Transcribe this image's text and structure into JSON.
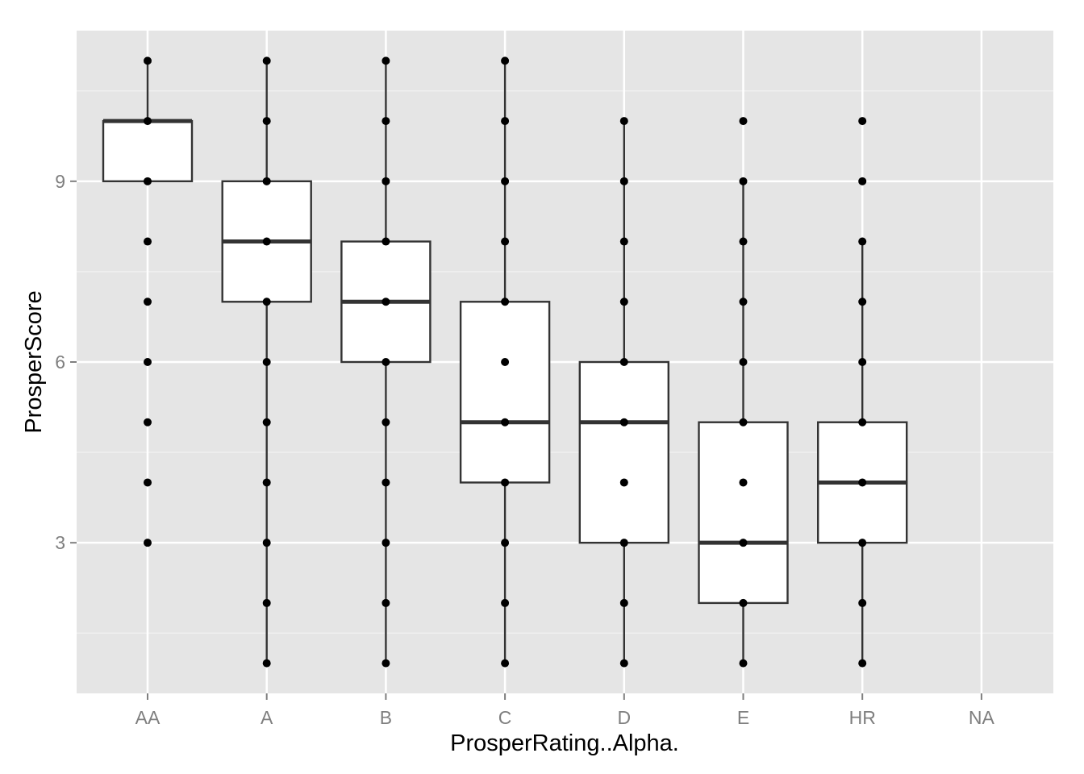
{
  "chart_data": {
    "type": "box",
    "title": "",
    "xlabel": "ProsperRating..Alpha.",
    "ylabel": "ProsperScore",
    "categories": [
      "AA",
      "A",
      "B",
      "C",
      "D",
      "E",
      "HR",
      "NA"
    ],
    "ylim": [
      0.5,
      11.5
    ],
    "y_ticks": [
      3,
      6,
      9
    ],
    "y_tick_labels": [
      "3",
      "6",
      "9"
    ],
    "grid": true,
    "legend": "none",
    "colors": {
      "panel_background": "#e5e5e5",
      "grid_major": "#ffffff",
      "grid_minor": "#f2f2f2",
      "box_fill": "#ffffff",
      "box_stroke": "#333333",
      "point": "#000000",
      "tick_label": "#7f7f7f"
    },
    "series": [
      {
        "category": "AA",
        "q1": 9,
        "median": 10,
        "q3": 10,
        "whisker_low": 9,
        "whisker_high": 11,
        "points": [
          3,
          4,
          5,
          6,
          7,
          8,
          9,
          10,
          11
        ]
      },
      {
        "category": "A",
        "q1": 7,
        "median": 8,
        "q3": 9,
        "whisker_low": 1,
        "whisker_high": 11,
        "points": [
          1,
          2,
          3,
          4,
          5,
          6,
          7,
          8,
          9,
          10,
          11
        ]
      },
      {
        "category": "B",
        "q1": 6,
        "median": 7,
        "q3": 8,
        "whisker_low": 1,
        "whisker_high": 11,
        "points": [
          1,
          2,
          3,
          4,
          5,
          6,
          7,
          8,
          9,
          10,
          11
        ]
      },
      {
        "category": "C",
        "q1": 4,
        "median": 5,
        "q3": 7,
        "whisker_low": 1,
        "whisker_high": 11,
        "points": [
          1,
          2,
          3,
          4,
          5,
          6,
          7,
          8,
          9,
          10,
          11
        ]
      },
      {
        "category": "D",
        "q1": 3,
        "median": 5,
        "q3": 6,
        "whisker_low": 1,
        "whisker_high": 10,
        "points": [
          1,
          2,
          3,
          4,
          5,
          6,
          7,
          8,
          9,
          10
        ]
      },
      {
        "category": "E",
        "q1": 2,
        "median": 3,
        "q3": 5,
        "whisker_low": 1,
        "whisker_high": 9,
        "points": [
          1,
          2,
          3,
          4,
          5,
          6,
          7,
          8,
          9,
          10
        ]
      },
      {
        "category": "HR",
        "q1": 3,
        "median": 4,
        "q3": 5,
        "whisker_low": 1,
        "whisker_high": 8,
        "points": [
          1,
          2,
          3,
          4,
          5,
          6,
          7,
          8,
          9,
          10
        ]
      }
    ]
  }
}
